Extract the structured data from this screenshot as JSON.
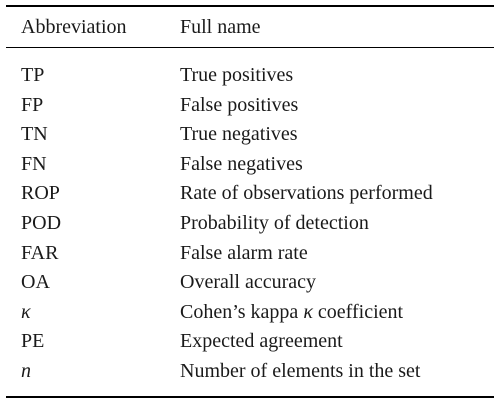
{
  "table": {
    "headers": {
      "abbreviation": "Abbreviation",
      "full_name": "Full name"
    },
    "rows": [
      {
        "abbr": "TP",
        "full": "True positives",
        "abbr_italic": false
      },
      {
        "abbr": "FP",
        "full": "False positives",
        "abbr_italic": false
      },
      {
        "abbr": "TN",
        "full": "True negatives",
        "abbr_italic": false
      },
      {
        "abbr": "FN",
        "full": "False negatives",
        "abbr_italic": false
      },
      {
        "abbr": "ROP",
        "full": "Rate of observations performed",
        "abbr_italic": false
      },
      {
        "abbr": "POD",
        "full": "Probability of detection",
        "abbr_italic": false
      },
      {
        "abbr": "FAR",
        "full": "False alarm rate",
        "abbr_italic": false
      },
      {
        "abbr": "OA",
        "full": "Overall accuracy",
        "abbr_italic": false
      },
      {
        "abbr": "κ",
        "full": "Cohen’s kappa κ coefficient",
        "abbr_italic": true
      },
      {
        "abbr": "PE",
        "full": "Expected agreement",
        "abbr_italic": false
      },
      {
        "abbr": "n",
        "full": "Number of elements in the set",
        "abbr_italic": true
      }
    ]
  }
}
